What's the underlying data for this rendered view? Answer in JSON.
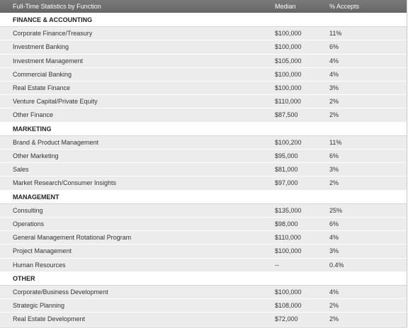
{
  "table": {
    "header": [
      "Full-Time Statistics by Function",
      "Median",
      "% Accepts"
    ],
    "sections": [
      {
        "title": "FINANCE & ACCOUNTING",
        "rows": [
          [
            "Corporate Finance/Treasury",
            "$100,000",
            "11%"
          ],
          [
            "Investment Banking",
            "$100,000",
            "6%"
          ],
          [
            "Investment Management",
            "$105,000",
            "4%"
          ],
          [
            "Commercial Banking",
            "$100,000",
            "4%"
          ],
          [
            "Real Estate Finance",
            "$100,000",
            "3%"
          ],
          [
            "Venture Capital/Private Equity",
            "$110,000",
            "2%"
          ],
          [
            "Other Finance",
            "$87,500",
            "2%"
          ]
        ]
      },
      {
        "title": "MARKETING",
        "rows": [
          [
            "Brand & Product Management",
            "$100,200",
            "11%"
          ],
          [
            "Other Marketing",
            "$95,000",
            "6%"
          ],
          [
            "Sales",
            "$81,000",
            "3%"
          ],
          [
            "Market Research/Consumer Insights",
            "$97,000",
            "2%"
          ]
        ]
      },
      {
        "title": "MANAGEMENT",
        "rows": [
          [
            "Consulting",
            "$135,000",
            "25%"
          ],
          [
            "Operations",
            "$98,000",
            "6%"
          ],
          [
            "General Management Rotational Program",
            "$110,000",
            "4%"
          ],
          [
            "Project Management",
            "$100,000",
            "3%"
          ],
          [
            "Human Resources",
            "--",
            "0.4%"
          ]
        ]
      },
      {
        "title": "OTHER",
        "rows": [
          [
            "Corporate/Business Development",
            "$100,000",
            "4%"
          ],
          [
            "Strategic Planning",
            "$108,000",
            "2%"
          ],
          [
            "Real Estate Development",
            "$72,000",
            "2%"
          ]
        ]
      }
    ]
  }
}
